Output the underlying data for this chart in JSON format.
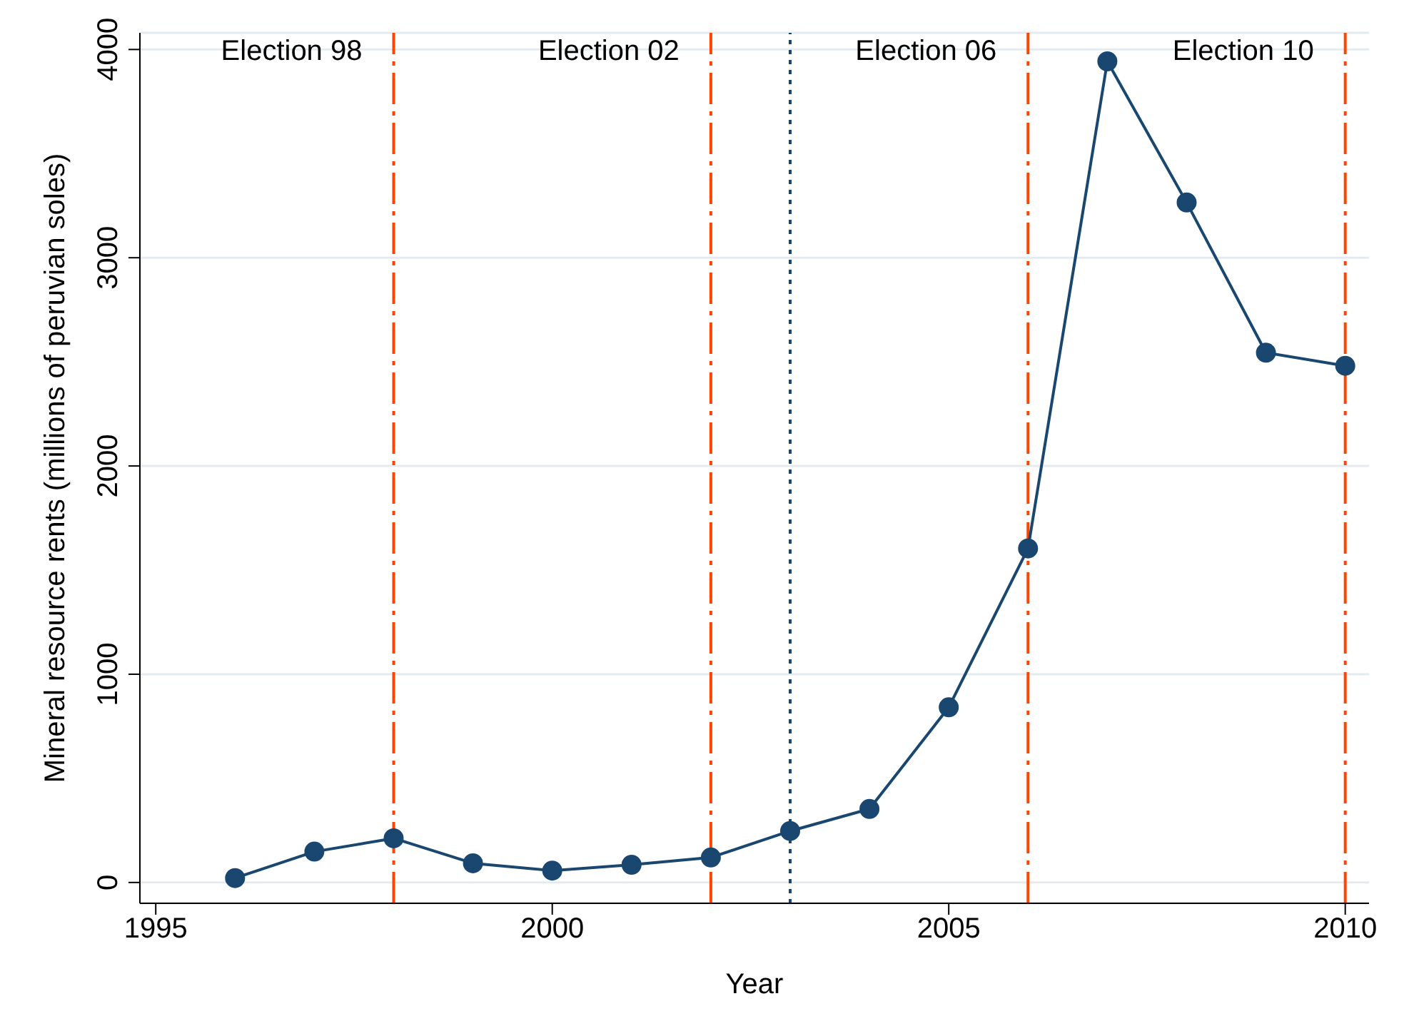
{
  "chart_data": {
    "type": "line",
    "xlabel": "Year",
    "ylabel": "Mineral resource rents (millions of peruvian soles)",
    "x": [
      1996,
      1997,
      1998,
      1999,
      2000,
      2001,
      2002,
      2003,
      2004,
      2005,
      2006,
      2007,
      2008,
      2009,
      2010
    ],
    "series": [
      {
        "color": "#1a476f",
        "values": [
          21,
          148,
          212,
          92,
          57,
          85,
          120,
          247,
          353,
          841,
          1604,
          3943,
          3265,
          2544,
          2481
        ]
      }
    ],
    "xlim": [
      1994.8,
      2010.3
    ],
    "xticks": [
      1995,
      2000,
      2005,
      2010
    ],
    "ylim": [
      -100,
      4080
    ],
    "yticks": [
      0,
      1000,
      2000,
      3000,
      4000
    ],
    "grid": "y",
    "marker": "circle",
    "line_style": "solid",
    "legend": false,
    "ref_lines": [
      {
        "axis": "x",
        "value": 1998,
        "color": "#ff4500",
        "line_style": "dashdot"
      },
      {
        "axis": "x",
        "value": 2002,
        "color": "#ff4500",
        "line_style": "dashdot"
      },
      {
        "axis": "x",
        "value": 2003,
        "color": "#1a476f",
        "line_style": "dotted"
      },
      {
        "axis": "x",
        "value": 2006,
        "color": "#ff4500",
        "line_style": "dashdot"
      },
      {
        "axis": "x",
        "value": 2010,
        "color": "#ff4500",
        "line_style": "dashdot"
      }
    ],
    "annotations": [
      "Election 98",
      "Election 02",
      "Election 06",
      "Election 10"
    ]
  }
}
